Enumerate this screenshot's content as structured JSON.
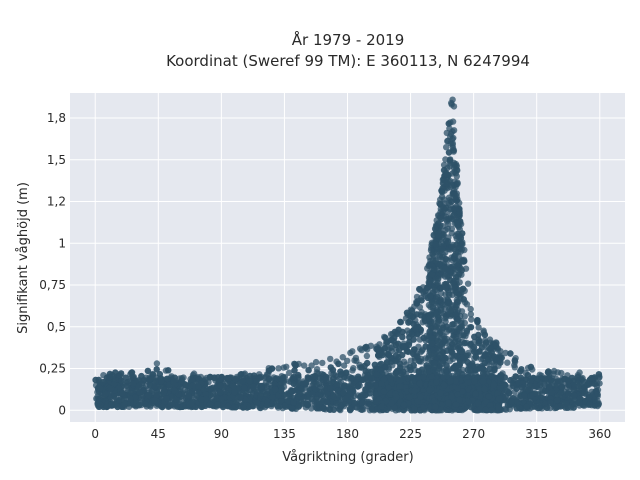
{
  "chart_data": {
    "type": "scatter",
    "title_line1": "År 1979 - 2019",
    "title_line2": "Koordinat (Sweref 99 TM): E 360113, N 6247994",
    "xlabel": "Vågriktning (grader)",
    "ylabel": "Signifikant våghöjd (m)",
    "xlim": [
      -18,
      378
    ],
    "ylim": [
      -0.07,
      1.9
    ],
    "x_ticks": [
      0,
      45,
      90,
      135,
      180,
      225,
      270,
      315,
      360
    ],
    "x_tick_labels": [
      "0",
      "45",
      "90",
      "135",
      "180",
      "225",
      "270",
      "315",
      "360"
    ],
    "y_ticks": [
      0,
      0.25,
      0.5,
      0.75,
      1,
      1.25,
      1.5,
      1.75
    ],
    "y_tick_labels": [
      "0",
      "0,25",
      "0,5",
      "0,75",
      "1",
      "1,2",
      "1,5",
      "1,8"
    ],
    "grid": true,
    "legend": "none",
    "colors": {
      "plot_background": "#e5e8ef",
      "grid": "#ffffff",
      "marker": "#2e5168"
    },
    "series": [
      {
        "approximate_envelope": {
          "x": [
            0,
            45,
            90,
            135,
            180,
            200,
            215,
            225,
            235,
            240,
            245,
            248,
            250,
            252,
            254,
            256,
            258,
            260,
            265,
            270,
            280,
            290,
            300,
            315,
            360
          ],
          "y_min": [
            0.02,
            0.02,
            0.02,
            0.01,
            0.0,
            0.0,
            0.0,
            0.0,
            0.0,
            0.0,
            0.0,
            0.0,
            0.0,
            0.0,
            0.0,
            0.0,
            0.0,
            0.0,
            0.0,
            0.0,
            0.0,
            0.0,
            0.01,
            0.01,
            0.02
          ],
          "y_max": [
            0.22,
            0.25,
            0.2,
            0.27,
            0.35,
            0.4,
            0.5,
            0.62,
            0.8,
            1.0,
            1.2,
            1.4,
            1.6,
            1.75,
            1.86,
            1.7,
            1.5,
            1.2,
            0.85,
            0.6,
            0.45,
            0.38,
            0.32,
            0.25,
            0.22
          ]
        },
        "outliers": [
          {
            "x": 44,
            "y": 0.28
          },
          {
            "x": 255,
            "y": 1.86
          },
          {
            "x": 254,
            "y": 1.84
          },
          {
            "x": 256,
            "y": 1.82
          }
        ]
      }
    ]
  }
}
